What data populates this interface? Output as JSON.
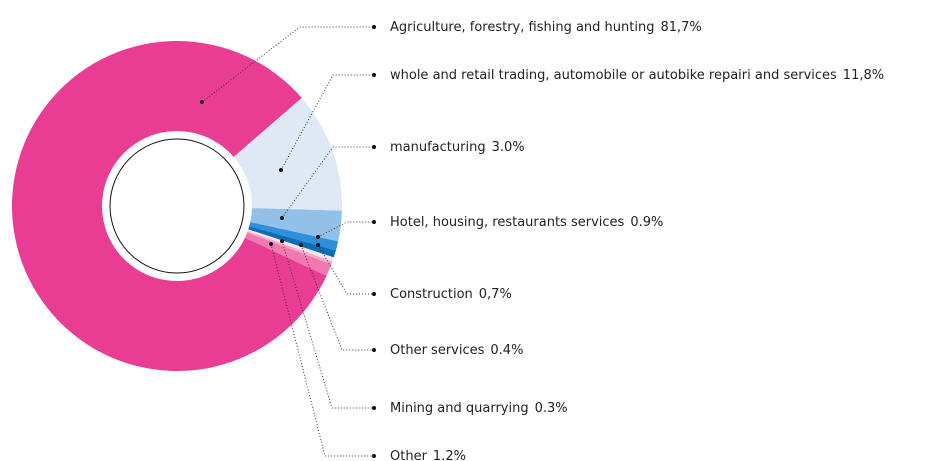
{
  "chart_data": {
    "type": "donut",
    "categories": [
      "Agriculture, forestry, fishing and hunting",
      "whole and retail trading, automobile or autobike repairi and  services",
      "manufacturing",
      "Hotel, housing, restaurants services",
      "Construction",
      "Other services",
      "Mining and quarrying",
      "Other"
    ],
    "values": [
      81.7,
      11.8,
      3.0,
      0.9,
      0.7,
      0.4,
      0.3,
      1.2
    ],
    "value_labels": [
      "81,7%",
      "11,8%",
      "3.0%",
      "0.9%",
      "0,7%",
      "0.4%",
      "0.3%",
      "1.2%"
    ],
    "colors": [
      "#e93c93",
      "#dfe9f6",
      "#93c0e8",
      "#2e90d8",
      "#0a6db8",
      "#fbe3ee",
      "#f6a8cb",
      "#f07ab0"
    ]
  }
}
